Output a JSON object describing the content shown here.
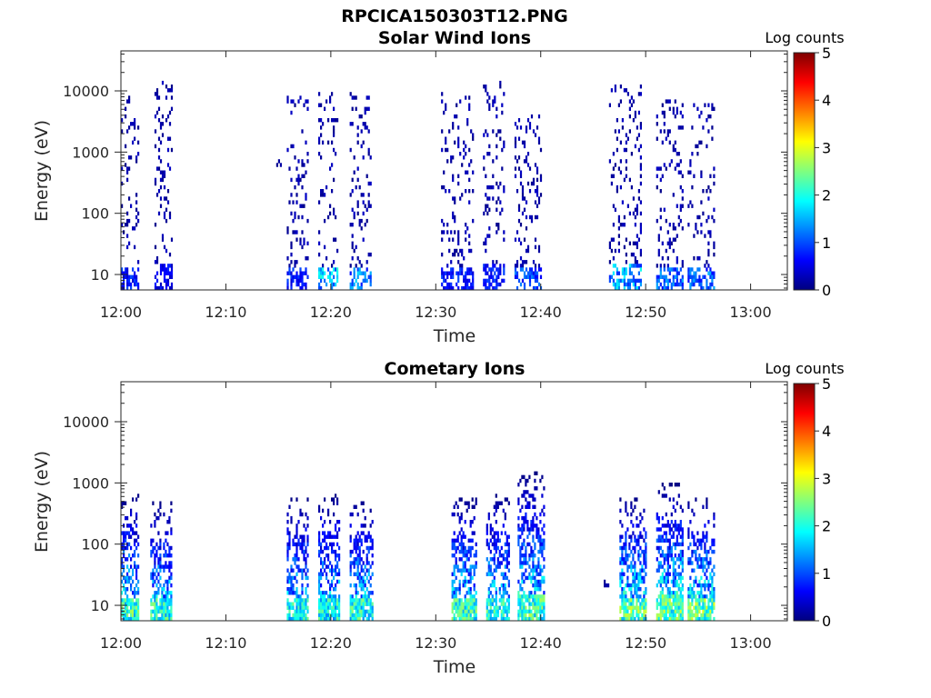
{
  "figure": {
    "title": "RPCICA150303T12.PNG"
  },
  "colormap": {
    "name": "jet",
    "stops": [
      "#00007f",
      "#0000ff",
      "#007fff",
      "#00ffff",
      "#7fff7f",
      "#ffff00",
      "#ff7f00",
      "#ff0000",
      "#7f0000"
    ]
  },
  "chart_data": [
    {
      "type": "heatmap",
      "title": "Solar Wind Ions",
      "xlabel": "Time",
      "ylabel": "Energy (eV)",
      "x_ticks": [
        "12:00",
        "12:10",
        "12:20",
        "12:30",
        "12:40",
        "12:50",
        "13:00"
      ],
      "x_range_minutes": [
        0,
        63.5
      ],
      "y_scale": "log",
      "y_ticks": [
        "10",
        "100",
        "1000",
        "10000"
      ],
      "y_range": [
        5.6,
        45000
      ],
      "colorbar": {
        "label": "Log counts",
        "range": [
          0,
          5
        ],
        "ticks": [
          "0",
          "1",
          "2",
          "3",
          "4",
          "5"
        ]
      },
      "bursts": [
        {
          "t_start": 0.0,
          "t_end": 1.6,
          "e_low": 5.6,
          "e_high": 8000,
          "peak_log_counts": 1.0
        },
        {
          "t_start": 3.2,
          "t_end": 4.8,
          "e_low": 5.6,
          "e_high": 15000,
          "peak_log_counts": 0.8
        },
        {
          "t_start": 14.8,
          "t_end": 15.2,
          "e_low": 600,
          "e_high": 800,
          "peak_log_counts": 0.2
        },
        {
          "t_start": 15.8,
          "t_end": 17.8,
          "e_low": 5.6,
          "e_high": 8000,
          "peak_log_counts": 1.0
        },
        {
          "t_start": 18.8,
          "t_end": 20.6,
          "e_low": 5.6,
          "e_high": 10000,
          "peak_log_counts": 2.2
        },
        {
          "t_start": 21.8,
          "t_end": 23.8,
          "e_low": 5.6,
          "e_high": 9000,
          "peak_log_counts": 1.7
        },
        {
          "t_start": 30.5,
          "t_end": 33.5,
          "e_low": 5.6,
          "e_high": 9000,
          "peak_log_counts": 1.0
        },
        {
          "t_start": 34.5,
          "t_end": 36.5,
          "e_low": 5.6,
          "e_high": 14000,
          "peak_log_counts": 1.0
        },
        {
          "t_start": 37.5,
          "t_end": 40.0,
          "e_low": 5.6,
          "e_high": 4000,
          "peak_log_counts": 1.3
        },
        {
          "t_start": 46.5,
          "t_end": 49.5,
          "e_low": 5.6,
          "e_high": 12000,
          "peak_log_counts": 2.0
        },
        {
          "t_start": 51.0,
          "t_end": 53.5,
          "e_low": 5.6,
          "e_high": 8000,
          "peak_log_counts": 1.5
        },
        {
          "t_start": 54.0,
          "t_end": 56.5,
          "e_low": 5.6,
          "e_high": 6000,
          "peak_log_counts": 1.5
        }
      ]
    },
    {
      "type": "heatmap",
      "title": "Cometary Ions",
      "xlabel": "Time",
      "ylabel": "Energy (eV)",
      "x_ticks": [
        "12:00",
        "12:10",
        "12:20",
        "12:30",
        "12:40",
        "12:50",
        "13:00"
      ],
      "x_range_minutes": [
        0,
        63.5
      ],
      "y_scale": "log",
      "y_ticks": [
        "10",
        "100",
        "1000",
        "10000"
      ],
      "y_range": [
        5.6,
        45000
      ],
      "colorbar": {
        "label": "Log counts",
        "range": [
          0,
          5
        ],
        "ticks": [
          "0",
          "1",
          "2",
          "3",
          "4",
          "5"
        ]
      },
      "bursts": [
        {
          "t_start": 0.0,
          "t_end": 1.6,
          "e_low": 5.6,
          "e_high": 700,
          "peak_log_counts": 2.8
        },
        {
          "t_start": 2.8,
          "t_end": 4.8,
          "e_low": 5.6,
          "e_high": 500,
          "peak_log_counts": 2.6
        },
        {
          "t_start": 15.8,
          "t_end": 17.8,
          "e_low": 5.6,
          "e_high": 600,
          "peak_log_counts": 2.5
        },
        {
          "t_start": 18.8,
          "t_end": 20.8,
          "e_low": 5.6,
          "e_high": 700,
          "peak_log_counts": 2.5
        },
        {
          "t_start": 21.8,
          "t_end": 24.0,
          "e_low": 5.6,
          "e_high": 600,
          "peak_log_counts": 2.6
        },
        {
          "t_start": 31.5,
          "t_end": 33.8,
          "e_low": 5.6,
          "e_high": 600,
          "peak_log_counts": 2.7
        },
        {
          "t_start": 34.8,
          "t_end": 37.0,
          "e_low": 5.6,
          "e_high": 700,
          "peak_log_counts": 2.7
        },
        {
          "t_start": 37.8,
          "t_end": 40.3,
          "e_low": 5.6,
          "e_high": 1500,
          "peak_log_counts": 2.8
        },
        {
          "t_start": 46.0,
          "t_end": 46.4,
          "e_low": 20,
          "e_high": 30,
          "peak_log_counts": 0.3
        },
        {
          "t_start": 47.5,
          "t_end": 50.0,
          "e_low": 5.6,
          "e_high": 600,
          "peak_log_counts": 3.0
        },
        {
          "t_start": 51.0,
          "t_end": 53.5,
          "e_low": 5.6,
          "e_high": 1000,
          "peak_log_counts": 3.0
        },
        {
          "t_start": 54.0,
          "t_end": 56.5,
          "e_low": 5.6,
          "e_high": 600,
          "peak_log_counts": 3.0
        }
      ]
    }
  ]
}
